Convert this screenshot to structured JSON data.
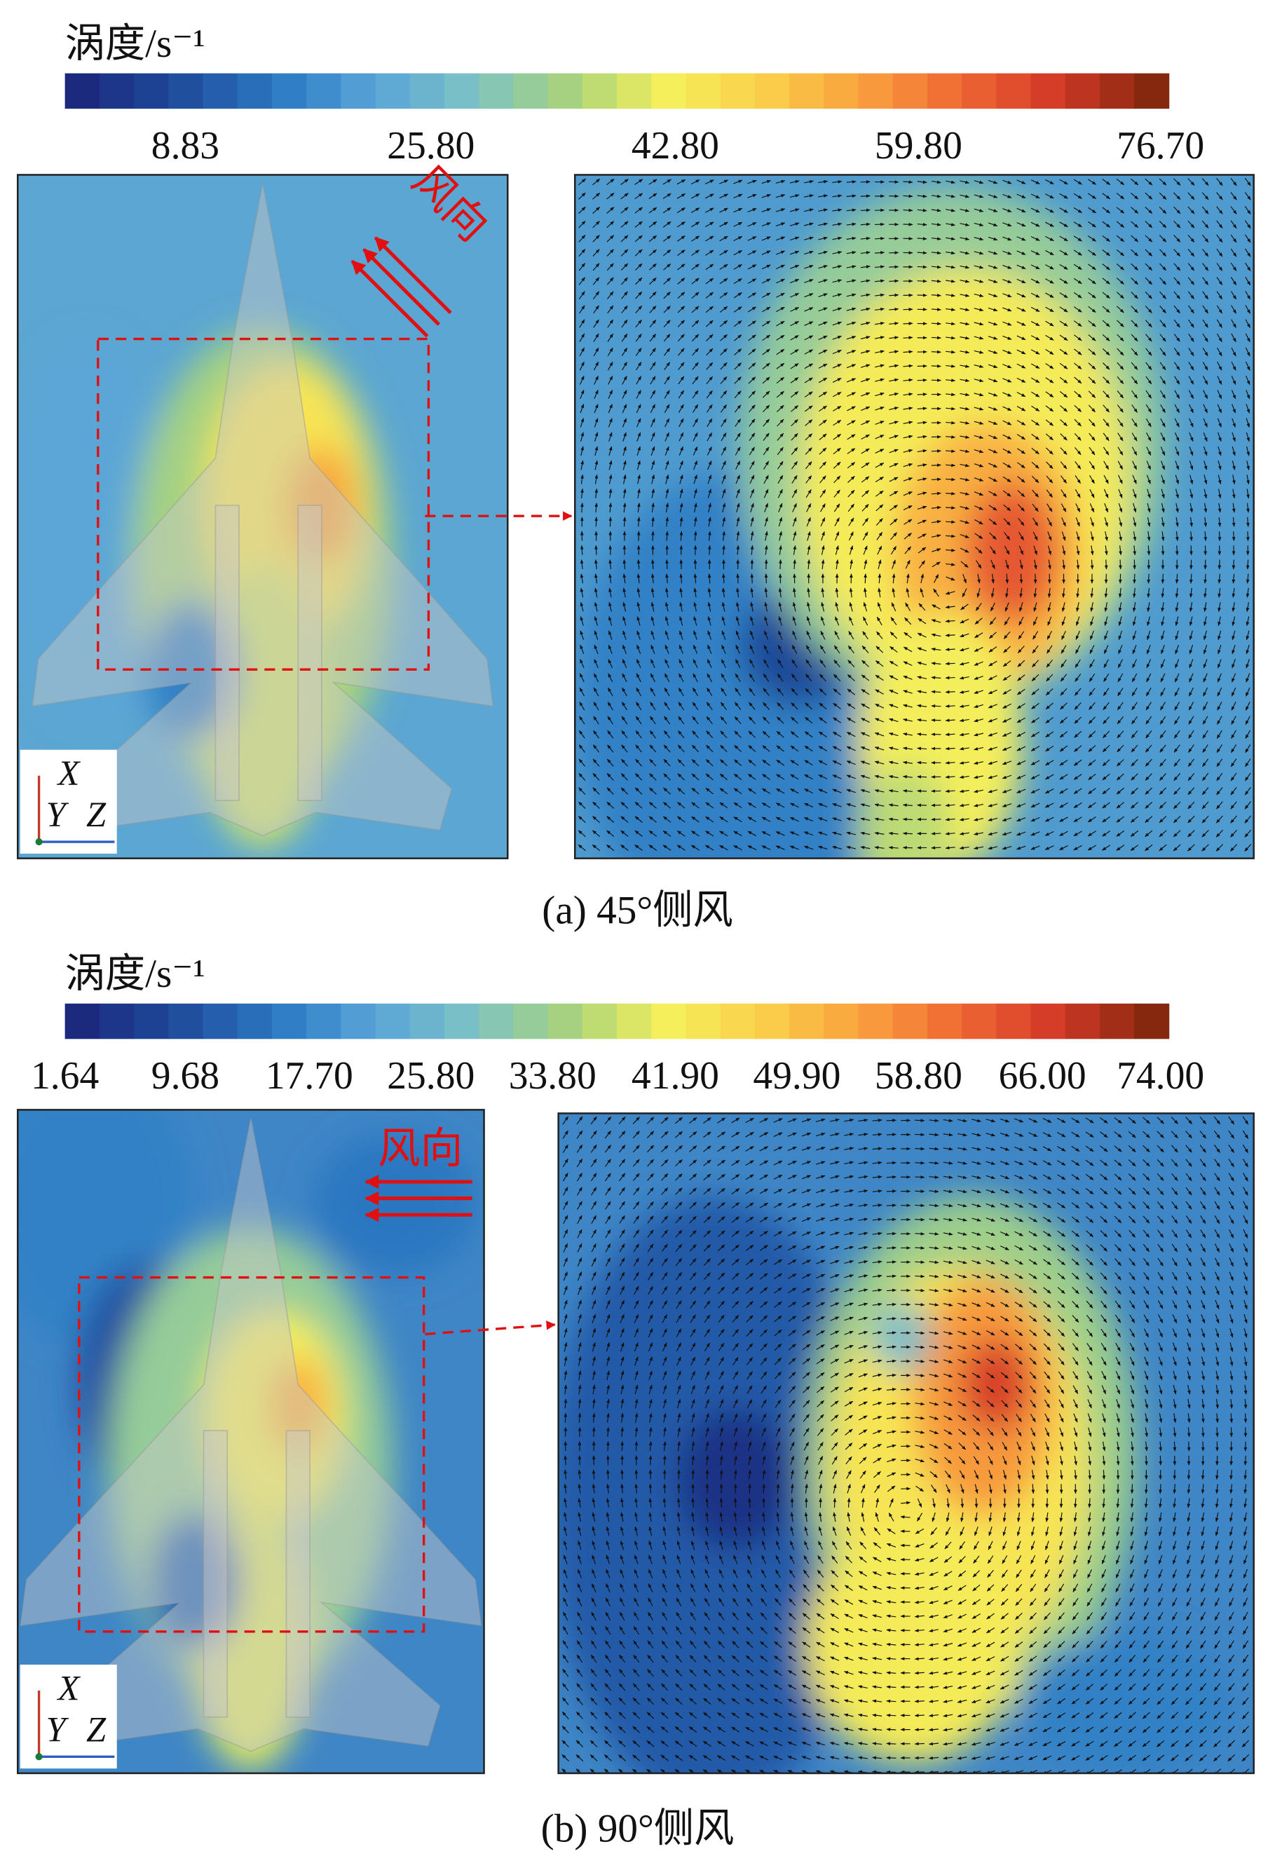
{
  "panels": [
    {
      "colorbar": {
        "title": "涡度/s⁻¹",
        "tick_labels": [
          "8.83",
          "25.80",
          "42.80",
          "59.80",
          "76.70"
        ]
      },
      "wind_label": "风向",
      "axes": {
        "x": "X",
        "y": "Y",
        "z": "Z"
      },
      "caption": "(a) 45°侧风"
    },
    {
      "colorbar": {
        "title": "涡度/s⁻¹",
        "tick_labels": [
          "1.64",
          "9.68",
          "17.70",
          "25.80",
          "33.80",
          "41.90",
          "49.90",
          "58.80",
          "66.00",
          "74.00"
        ]
      },
      "wind_label": "风向",
      "axes": {
        "x": "X",
        "y": "Y",
        "z": "Z"
      },
      "caption": "(b) 90°侧风"
    }
  ]
}
